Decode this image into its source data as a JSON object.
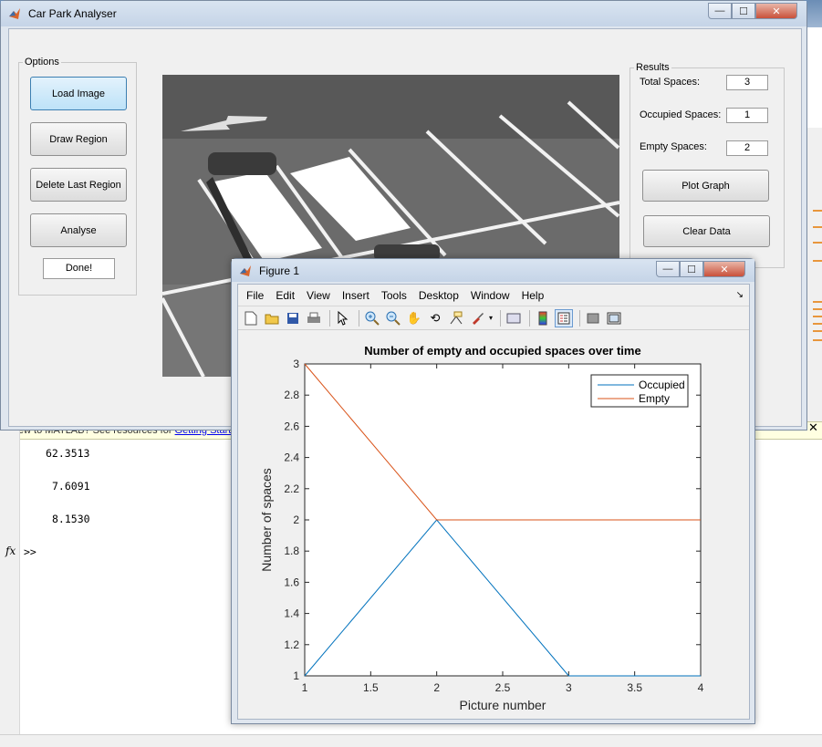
{
  "main_window": {
    "title": "Car Park Analyser",
    "controls": {
      "minimize": "—",
      "maximize": "☐",
      "close": "✕"
    },
    "options": {
      "legend": "Options",
      "load_image": "Load Image",
      "draw_region": "Draw Region",
      "delete_last_region": "Delete Last Region",
      "analyse": "Analyse",
      "done": "Done!"
    },
    "results": {
      "legend": "Results",
      "total_label": "Total Spaces:",
      "total_value": "3",
      "occupied_label": "Occupied Spaces:",
      "occupied_value": "1",
      "empty_label": "Empty Spaces:",
      "empty_value": "2",
      "plot_graph": "Plot Graph",
      "clear_data": "Clear Data"
    }
  },
  "command_window": {
    "banner_text": "New to MATLAB? See resources for ",
    "banner_link": "Getting Started",
    "values": [
      "62.3513",
      "7.6091",
      "8.1530"
    ],
    "fx": "fx",
    "prompt": ">>"
  },
  "figure_window": {
    "title": "Figure 1",
    "menus": [
      "File",
      "Edit",
      "View",
      "Insert",
      "Tools",
      "Desktop",
      "Window",
      "Help"
    ],
    "toolbar_icons": [
      "new-figure-icon",
      "open-icon",
      "save-icon",
      "print-icon",
      "pointer-icon",
      "zoom-in-icon",
      "zoom-out-icon",
      "pan-icon",
      "rotate-icon",
      "data-cursor-icon",
      "brush-icon",
      "link-icon",
      "colorbar-icon",
      "legend-icon",
      "hide-plot-tools-icon",
      "show-plot-tools-icon"
    ]
  },
  "chart_data": {
    "type": "line",
    "title": "Number of empty and occupied spaces over time",
    "xlabel": "Picture number",
    "ylabel": "Number of spaces",
    "xlim": [
      1,
      4
    ],
    "ylim": [
      1,
      3
    ],
    "xticks": [
      "1",
      "1.5",
      "2",
      "2.5",
      "3",
      "3.5",
      "4"
    ],
    "yticks": [
      "1",
      "1.2",
      "1.4",
      "1.6",
      "1.8",
      "2",
      "2.2",
      "2.4",
      "2.6",
      "2.8",
      "3"
    ],
    "x": [
      1,
      2,
      3,
      4
    ],
    "series": [
      {
        "name": "Occupied",
        "values": [
          1,
          2,
          1,
          1
        ],
        "color": "#0072bd"
      },
      {
        "name": "Empty",
        "values": [
          3,
          2,
          2,
          2
        ],
        "color": "#d95319"
      }
    ],
    "legend_position": "top-right",
    "grid": false
  }
}
